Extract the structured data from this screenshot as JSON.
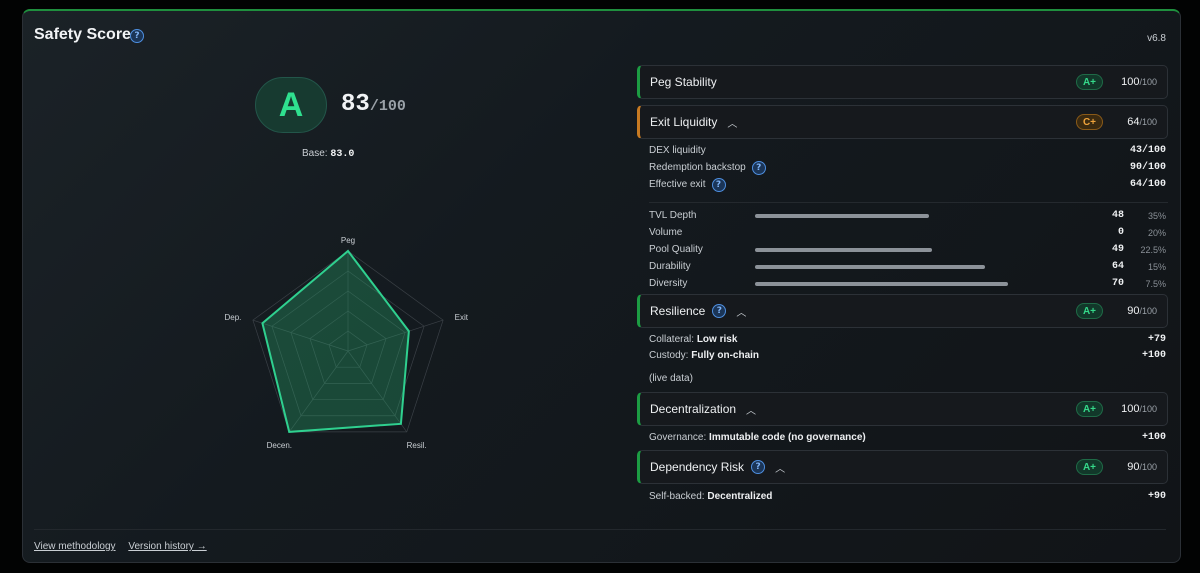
{
  "header": {
    "title": "Safety Score",
    "version": "v6.8"
  },
  "grade": {
    "letter": "A",
    "score": "83",
    "out_of": "/100",
    "base_label": "Base:",
    "base_value": "83.0"
  },
  "radar": {
    "axes": [
      "Peg",
      "Exit",
      "Resil.",
      "Decen.",
      "Dep."
    ],
    "values": [
      100,
      64,
      90,
      100,
      90
    ],
    "max": 100,
    "color": "#2fd08f"
  },
  "footer": {
    "methodology": "View methodology",
    "history": "Version history →"
  },
  "categories": {
    "peg": {
      "name": "Peg Stability",
      "grade": "A+",
      "score": "100",
      "out_of": "/100"
    },
    "exit": {
      "name": "Exit Liquidity",
      "grade": "C+",
      "score": "64",
      "out_of": "/100",
      "metrics": [
        {
          "label": "DEX liquidity",
          "value": "43/100"
        },
        {
          "label": "Redemption backstop",
          "value": "90/100"
        },
        {
          "label": "Effective exit",
          "value": "64/100"
        }
      ],
      "factors": [
        {
          "label": "TVL Depth",
          "value": "48",
          "weight": "35%",
          "fill": 0.68
        },
        {
          "label": "Volume",
          "value": "0",
          "weight": "20%",
          "fill": 0
        },
        {
          "label": "Pool Quality",
          "value": "49",
          "weight": "22.5%",
          "fill": 0.69
        },
        {
          "label": "Durability",
          "value": "64",
          "weight": "15%",
          "fill": 0.9
        },
        {
          "label": "Diversity",
          "value": "70",
          "weight": "7.5%",
          "fill": 0.99
        }
      ]
    },
    "resilience": {
      "name": "Resilience",
      "grade": "A+",
      "score": "90",
      "out_of": "/100",
      "collateral_label": "Collateral:",
      "collateral_value": "Low risk",
      "collateral_delta": "+79",
      "custody_label": "Custody:",
      "custody_value": "Fully on-chain",
      "custody_delta": "+100",
      "note": "(live data)"
    },
    "decentralization": {
      "name": "Decentralization",
      "grade": "A+",
      "score": "100",
      "out_of": "/100",
      "gov_label": "Governance:",
      "gov_value": "Immutable code (no governance)",
      "gov_delta": "+100"
    },
    "dependency": {
      "name": "Dependency Risk",
      "grade": "A+",
      "score": "90",
      "out_of": "/100",
      "dep_label": "Self-backed:",
      "dep_value": "Decentralized",
      "dep_delta": "+90"
    }
  }
}
